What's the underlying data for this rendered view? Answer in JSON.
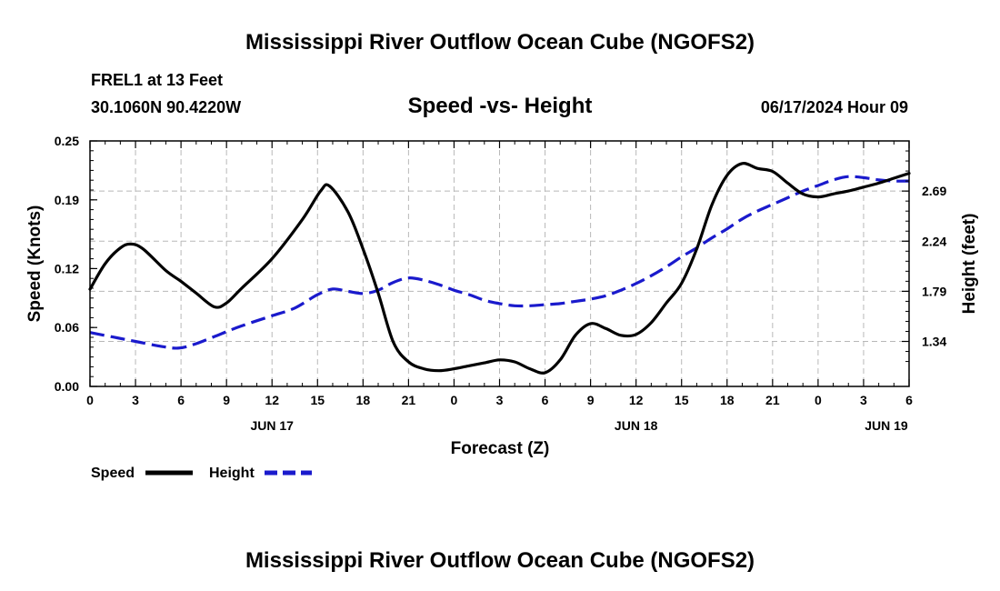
{
  "page": {
    "title_top": "Mississippi River Outflow Ocean Cube (NGOFS2)",
    "title_bottom": "Mississippi River Outflow Ocean Cube (NGOFS2)",
    "station": "FREL1 at 13 Feet",
    "coords": "30.1060N  90.4220W",
    "datetime": "06/17/2024 Hour 09"
  },
  "chart_data": {
    "type": "line",
    "title": "Speed -vs- Height",
    "xlabel": "Forecast (Z)",
    "ylabel_left": "Speed (Knots)",
    "ylabel_right": "Height (feet)",
    "x_unit": "hours since 06/17/2024 00Z",
    "xlim": [
      0,
      54
    ],
    "x_ticks": [
      0,
      3,
      6,
      9,
      12,
      15,
      18,
      21,
      24,
      27,
      30,
      33,
      36,
      39,
      42,
      45,
      48,
      51,
      54
    ],
    "x_tick_labels": [
      "0",
      "3",
      "6",
      "9",
      "12",
      "15",
      "18",
      "21",
      "0",
      "3",
      "6",
      "9",
      "12",
      "15",
      "18",
      "21",
      "0",
      "3",
      "6"
    ],
    "day_labels": [
      {
        "x": 12,
        "label": "JUN 17"
      },
      {
        "x": 36,
        "label": "JUN 18"
      },
      {
        "x": 52.5,
        "label": "JUN 19"
      }
    ],
    "y_left": {
      "lim": [
        0,
        0.25
      ],
      "ticks": [
        0,
        0.06,
        0.12,
        0.19,
        0.25
      ],
      "tick_labels": [
        "0.00",
        "0.06",
        "0.12",
        "0.19",
        "0.25"
      ]
    },
    "y_right": {
      "lim": [
        0.936,
        3.14
      ],
      "ticks": [
        1.34,
        1.79,
        2.24,
        2.69
      ],
      "tick_labels": [
        "1.34",
        "1.79",
        "2.24",
        "2.69"
      ]
    },
    "grid": true,
    "legend_position": "bottom-left",
    "series": [
      {
        "name": "Speed",
        "axis": "left",
        "color": "#000000",
        "dashed": false,
        "x": [
          0,
          1,
          2,
          2.7,
          3.5,
          5,
          6,
          7,
          8.2,
          9,
          10,
          12,
          14,
          15.2,
          15.8,
          17,
          18,
          19,
          20,
          21,
          22,
          23,
          24,
          25,
          26,
          27,
          28,
          29,
          30,
          31,
          32,
          33,
          34,
          35,
          36,
          37,
          38,
          39,
          40,
          41,
          42,
          43,
          44,
          45,
          46,
          47,
          48,
          49,
          50,
          51,
          52,
          53,
          54
        ],
        "y": [
          0.099,
          0.125,
          0.141,
          0.145,
          0.14,
          0.118,
          0.107,
          0.095,
          0.081,
          0.085,
          0.1,
          0.13,
          0.17,
          0.199,
          0.204,
          0.178,
          0.14,
          0.095,
          0.045,
          0.025,
          0.018,
          0.016,
          0.018,
          0.021,
          0.024,
          0.027,
          0.025,
          0.018,
          0.014,
          0.027,
          0.052,
          0.064,
          0.059,
          0.052,
          0.053,
          0.065,
          0.085,
          0.105,
          0.14,
          0.185,
          0.215,
          0.227,
          0.222,
          0.219,
          0.207,
          0.196,
          0.193,
          0.196,
          0.199,
          0.203,
          0.207,
          0.212,
          0.217
        ]
      },
      {
        "name": "Height",
        "axis": "right",
        "color": "#1a1acc",
        "dashed": true,
        "x": [
          0,
          1.5,
          3,
          4.5,
          5.8,
          7,
          8.5,
          10,
          12,
          13.5,
          15,
          16,
          17,
          18,
          19,
          20,
          21,
          22,
          23,
          24,
          25,
          26,
          27,
          28,
          29,
          30,
          31,
          32,
          33,
          34,
          35,
          36,
          37,
          38,
          39,
          40,
          41,
          42,
          43,
          44,
          45,
          46,
          47,
          48,
          49,
          50,
          51,
          52,
          53,
          54
        ],
        "y": [
          1.42,
          1.38,
          1.34,
          1.3,
          1.28,
          1.32,
          1.4,
          1.48,
          1.57,
          1.64,
          1.76,
          1.81,
          1.79,
          1.77,
          1.8,
          1.87,
          1.91,
          1.89,
          1.85,
          1.8,
          1.76,
          1.71,
          1.68,
          1.66,
          1.66,
          1.67,
          1.68,
          1.7,
          1.72,
          1.75,
          1.8,
          1.86,
          1.93,
          2.01,
          2.1,
          2.18,
          2.27,
          2.35,
          2.44,
          2.51,
          2.57,
          2.63,
          2.69,
          2.74,
          2.79,
          2.82,
          2.81,
          2.79,
          2.78,
          2.78
        ]
      }
    ]
  }
}
